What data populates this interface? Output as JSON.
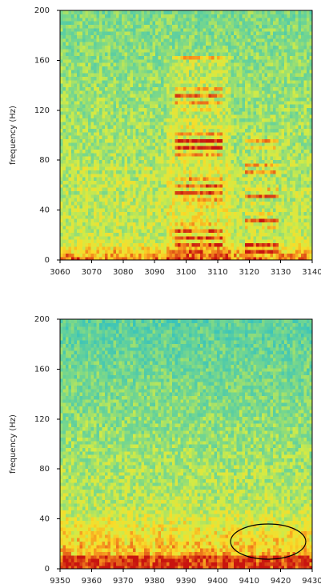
{
  "chart_data": [
    {
      "type": "spectrogram",
      "ylabel": "frequency (Hz)",
      "xlim": [
        3060,
        3140
      ],
      "xticks": [
        3060,
        3070,
        3080,
        3090,
        3100,
        3110,
        3120,
        3130,
        3140
      ],
      "ylim": [
        0,
        200
      ],
      "yticks": [
        0,
        40,
        80,
        120,
        160,
        200
      ]
    },
    {
      "type": "spectrogram",
      "ylabel": "frequency (Hz)",
      "xlim": [
        9350,
        9430
      ],
      "xticks": [
        9350,
        9360,
        9370,
        9380,
        9390,
        9400,
        9410,
        9420,
        9430
      ],
      "ylim": [
        0,
        200
      ],
      "yticks": [
        0,
        40,
        80,
        120,
        160,
        200
      ]
    }
  ]
}
